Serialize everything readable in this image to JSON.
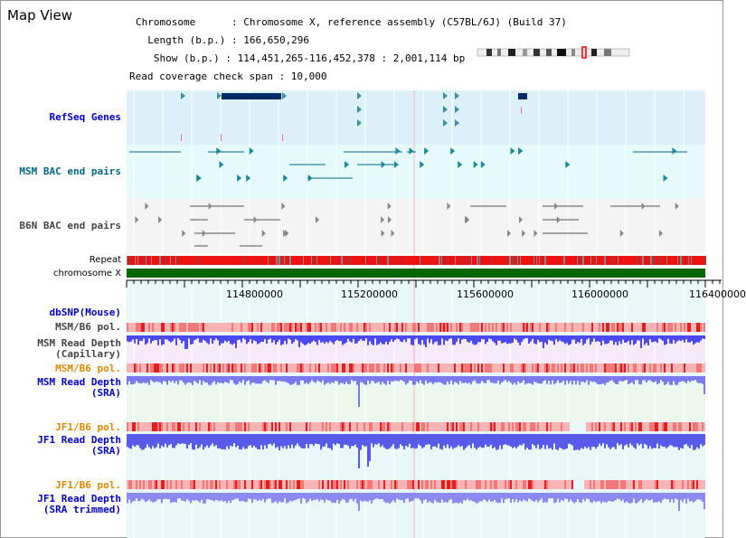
{
  "header": {
    "title": "Map View",
    "chromosome_line": "Chromosome      : Chromosome X, reference assembly (C57BL/6J) (Build 37)",
    "length_line": "  Length (b.p.) : 166,650,296",
    "show_line": "   Show (b.p.) : 114,451,265-116,452,378 : 2,001,114 bp",
    "span_line": "Read coverage check span : 10,000"
  },
  "tracks": {
    "refseq": {
      "label": "RefSeq Genes",
      "color": "#0000cc"
    },
    "msm_bac": {
      "label": "MSM BAC end pairs",
      "color": "#006688"
    },
    "b6n_bac": {
      "label": "B6N BAC end pairs",
      "color": "#444444"
    },
    "repeat": {
      "label": "Repeat"
    },
    "chrom": {
      "label": "chromosome X"
    },
    "dbsnp": {
      "label": "dbSNP(Mouse)",
      "color": "#0000cc"
    },
    "msm_b6_pol_1": {
      "label": "MSM/B6 pol.",
      "color": "#444444"
    },
    "msm_depth_cap": {
      "label": "MSM Read Depth\n(Capillary)",
      "color": "#444444"
    },
    "msm_b6_pol_2": {
      "label": "MSM/B6 pol.",
      "color": "#dd8800"
    },
    "msm_depth_sra": {
      "label": "MSM Read Depth\n(SRA)",
      "color": "#0000cc"
    },
    "jf1_b6_pol_1": {
      "label": "JF1/B6 pol.",
      "color": "#dd8800"
    },
    "jf1_depth_sra": {
      "label": "JF1 Read Depth\n(SRA)",
      "color": "#0000cc"
    },
    "jf1_b6_pol_2": {
      "label": "JF1/B6 pol.",
      "color": "#dd8800"
    },
    "jf1_depth_trim": {
      "label": "JF1 Read Depth\n(SRA trimmed)",
      "color": "#0000cc"
    }
  },
  "axis": {
    "ticks": [
      "114800000",
      "115200000",
      "115600000",
      "116000000",
      "116400000"
    ]
  },
  "colors": {
    "refseq_bg": "#ddf0fa",
    "msm_bg": "#e6fafc",
    "repeat": "#ee1111",
    "chromosome": "#006600",
    "gene": "#002a66",
    "depth_blue": "#3333ee",
    "pol_red": "#ee3333"
  }
}
